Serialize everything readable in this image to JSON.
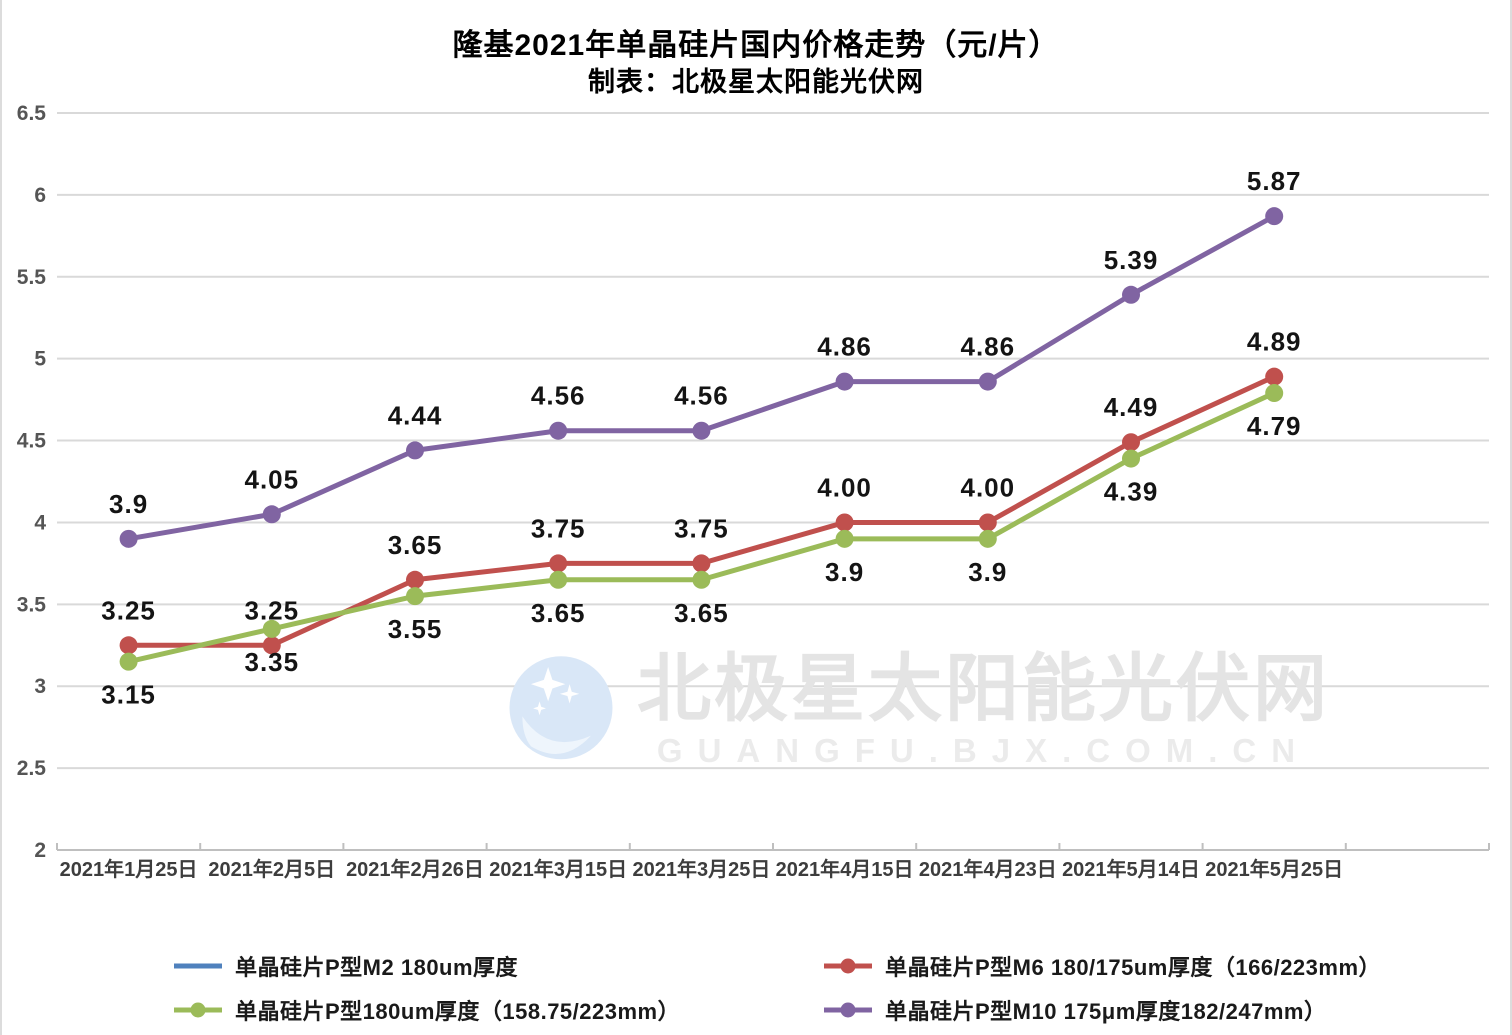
{
  "chart_data": {
    "type": "line",
    "title": "隆基2021年单晶硅片国内价格走势（元/片）",
    "subtitle": "制表：北极星太阳能光伏网",
    "categories": [
      "2021年1月25日",
      "2021年2月5日",
      "2021年2月26日",
      "2021年3月15日",
      "2021年3月25日",
      "2021年4月15日",
      "2021年4月23日",
      "2021年5月14日",
      "2021年5月25日"
    ],
    "y_ticks": [
      "6.5",
      "6",
      "5.5",
      "5",
      "4.5",
      "4",
      "3.5",
      "3",
      "2.5",
      "2"
    ],
    "ylim": [
      2,
      6.5
    ],
    "xlabel": "",
    "ylabel": "",
    "grid": true,
    "legend_position": "bottom",
    "series": [
      {
        "name": "单晶硅片P型M2 180um厚度",
        "color": "#4F81BD",
        "marker": false,
        "label_position": "above",
        "values": [],
        "labels": []
      },
      {
        "name": "单晶硅片P型M6 180/175um厚度（166/223mm）",
        "color": "#C0504D",
        "marker": true,
        "label_position": "above",
        "values": [
          3.25,
          3.25,
          3.65,
          3.75,
          3.75,
          4.0,
          4.0,
          4.49,
          4.89
        ],
        "labels": [
          "3.25",
          "3.25",
          "3.65",
          "3.75",
          "3.75",
          "4.00",
          "4.00",
          "4.49",
          "4.89"
        ]
      },
      {
        "name": "单晶硅片P型180um厚度（158.75/223mm）",
        "color": "#9BBB59",
        "marker": true,
        "label_position": "below",
        "values": [
          3.15,
          3.35,
          3.55,
          3.65,
          3.65,
          3.9,
          3.9,
          4.39,
          4.79
        ],
        "labels": [
          "3.15",
          "3.35",
          "3.55",
          "3.65",
          "3.65",
          "3.9",
          "3.9",
          "4.39",
          "4.79"
        ]
      },
      {
        "name": "单晶硅片P型M10 175μm厚度182/247mm）",
        "color": "#8064A2",
        "marker": true,
        "label_position": "above",
        "values": [
          3.9,
          4.05,
          4.44,
          4.56,
          4.56,
          4.86,
          4.86,
          5.39,
          5.87
        ],
        "labels": [
          "3.9",
          "4.05",
          "4.44",
          "4.56",
          "4.56",
          "4.86",
          "4.86",
          "5.39",
          "5.87"
        ]
      }
    ]
  },
  "watermark": {
    "text": "北极星太阳能光伏网",
    "subtext": "GUANGFU.BJX.COM.CN",
    "logo_color": "#d9e7f7"
  },
  "style": {
    "gridline_color": "#d9d9d9",
    "axis_color": "#bfbfbf"
  }
}
